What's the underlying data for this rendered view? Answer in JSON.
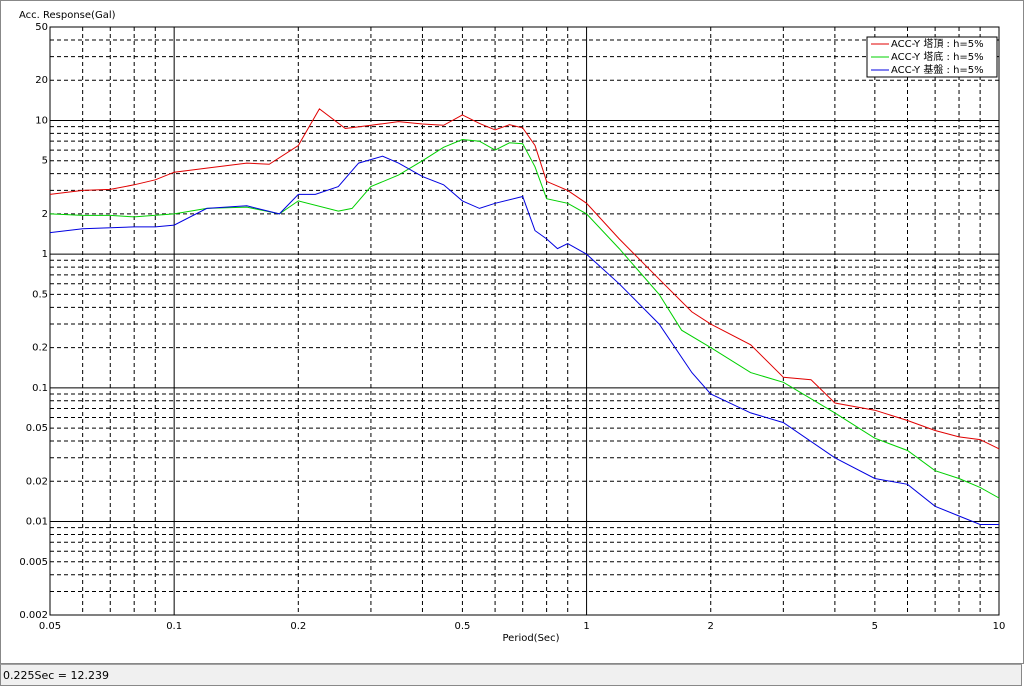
{
  "chart_data": {
    "type": "line",
    "ylabel": "Acc. Response(Gal)",
    "xlabel": "Period(Sec)",
    "xscale": "log",
    "yscale": "log",
    "grid": true,
    "legend": "upper right",
    "xlim": [
      0.05,
      10
    ],
    "ylim": [
      0.002,
      50
    ],
    "xticks": [
      0.05,
      0.1,
      0.2,
      0.5,
      1,
      2,
      5,
      10
    ],
    "yticks": [
      0.002,
      0.005,
      0.01,
      0.02,
      0.05,
      0.1,
      0.2,
      0.5,
      1,
      2,
      5,
      10,
      20,
      50
    ],
    "series": [
      {
        "name": "ACC-Y 塔頂 : h=5%",
        "color": "#e00000",
        "x": [
          0.05,
          0.06,
          0.07,
          0.08,
          0.09,
          0.1,
          0.12,
          0.15,
          0.17,
          0.2,
          0.225,
          0.26,
          0.3,
          0.35,
          0.4,
          0.45,
          0.5,
          0.55,
          0.6,
          0.65,
          0.7,
          0.75,
          0.8,
          0.9,
          1.0,
          1.2,
          1.5,
          1.8,
          2.0,
          2.5,
          3,
          3.5,
          4,
          5,
          6,
          7,
          8,
          9,
          10
        ],
        "values": [
          2.8,
          3.0,
          3.05,
          3.3,
          3.6,
          4.1,
          4.4,
          4.8,
          4.7,
          6.5,
          12.2,
          8.7,
          9.2,
          9.8,
          9.4,
          9.2,
          11,
          9.5,
          8.5,
          9.3,
          8.8,
          6.5,
          3.5,
          3.0,
          2.4,
          1.3,
          0.65,
          0.37,
          0.3,
          0.21,
          0.12,
          0.115,
          0.077,
          0.068,
          0.057,
          0.048,
          0.043,
          0.041,
          0.035
        ]
      },
      {
        "name": "ACC-Y 塔底 : h=5%",
        "color": "#00d000",
        "x": [
          0.05,
          0.06,
          0.07,
          0.08,
          0.1,
          0.12,
          0.15,
          0.18,
          0.2,
          0.25,
          0.27,
          0.3,
          0.35,
          0.4,
          0.45,
          0.5,
          0.55,
          0.6,
          0.65,
          0.7,
          0.75,
          0.8,
          0.9,
          1.0,
          1.2,
          1.5,
          1.7,
          2.0,
          2.5,
          3,
          4,
          5,
          6,
          7,
          8,
          9,
          10
        ],
        "values": [
          2.0,
          1.95,
          1.95,
          1.9,
          2.0,
          2.2,
          2.25,
          2.0,
          2.5,
          2.1,
          2.2,
          3.2,
          3.9,
          5.0,
          6.3,
          7.2,
          7.0,
          6.0,
          6.8,
          6.7,
          4.5,
          2.6,
          2.4,
          2.0,
          1.1,
          0.5,
          0.27,
          0.2,
          0.13,
          0.11,
          0.065,
          0.042,
          0.034,
          0.024,
          0.021,
          0.018,
          0.015
        ]
      },
      {
        "name": "ACC-Y 基盤 : h=5%",
        "color": "#0000e0",
        "x": [
          0.05,
          0.06,
          0.08,
          0.09,
          0.1,
          0.12,
          0.15,
          0.18,
          0.2,
          0.22,
          0.25,
          0.28,
          0.32,
          0.35,
          0.4,
          0.45,
          0.5,
          0.55,
          0.6,
          0.7,
          0.75,
          0.8,
          0.85,
          0.9,
          1.0,
          1.2,
          1.5,
          1.8,
          2.0,
          2.5,
          3,
          4,
          5,
          6,
          7,
          8,
          9,
          10
        ],
        "values": [
          1.45,
          1.55,
          1.6,
          1.6,
          1.65,
          2.2,
          2.3,
          2.0,
          2.8,
          2.8,
          3.2,
          4.8,
          5.4,
          4.8,
          3.8,
          3.3,
          2.5,
          2.2,
          2.4,
          2.7,
          1.5,
          1.3,
          1.1,
          1.2,
          1.0,
          0.6,
          0.3,
          0.13,
          0.09,
          0.065,
          0.055,
          0.03,
          0.021,
          0.019,
          0.013,
          0.011,
          0.0095,
          0.0095
        ]
      }
    ]
  },
  "status": "0.225Sec = 12.239"
}
